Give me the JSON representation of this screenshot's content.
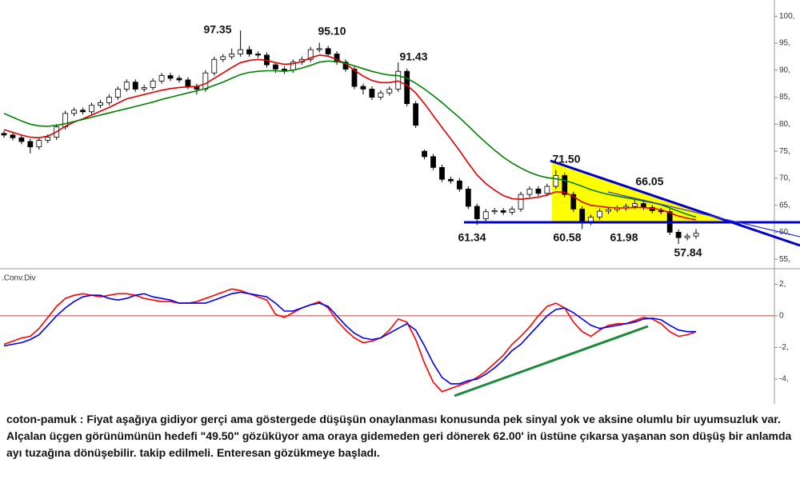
{
  "chart_data": [
    {
      "type": "candlestick",
      "open": [
        78.3,
        78.0,
        77.5,
        76.8,
        75.8,
        77.0,
        77.6,
        79.5,
        82.0,
        82.6,
        82.3,
        83.5,
        84.0,
        85.0,
        86.5,
        87.8,
        86.5,
        86.8,
        88.0,
        89.0,
        88.5,
        88.2,
        87.0,
        86.5,
        89.5,
        92.0,
        92.5,
        93.0,
        93.8,
        93.0,
        92.8,
        91.0,
        90.2,
        90.0,
        91.5,
        92.0,
        93.8,
        94.0,
        93.0,
        91.5,
        90.2,
        87.0,
        86.5,
        85.0,
        85.8,
        86.5,
        89.8,
        83.8,
        75.0,
        74.0,
        72.0,
        69.8,
        69.5,
        68.0,
        64.8,
        62.5,
        63.8,
        64.0,
        63.7,
        64.3,
        67.0,
        68.0,
        67.2,
        68.5,
        70.5,
        67.0,
        64.3,
        61.8,
        62.8,
        63.9,
        64.2,
        64.5,
        64.8,
        65.3,
        64.6,
        64.0,
        63.8,
        60.0,
        59.0,
        59.3
      ],
      "high": [
        78.8,
        78.5,
        78.0,
        77.3,
        77.5,
        78.1,
        80.0,
        82.5,
        83.1,
        83.1,
        84.0,
        84.5,
        85.5,
        87.0,
        88.3,
        88.3,
        87.3,
        88.5,
        89.5,
        89.5,
        89.0,
        88.7,
        87.5,
        90.0,
        92.5,
        93.0,
        94.0,
        97.35,
        94.5,
        93.5,
        93.3,
        91.5,
        90.7,
        92.0,
        92.5,
        94.3,
        95.1,
        94.5,
        93.5,
        92.0,
        90.7,
        87.5,
        87.0,
        86.3,
        87.0,
        91.43,
        90.3,
        84.3,
        75.3,
        74.5,
        72.5,
        70.3,
        70.0,
        68.5,
        65.3,
        64.3,
        64.5,
        64.5,
        64.8,
        67.5,
        68.5,
        68.5,
        69.0,
        71.5,
        71.0,
        67.5,
        64.8,
        63.3,
        64.4,
        64.7,
        65.0,
        65.3,
        66.05,
        65.8,
        65.1,
        64.5,
        64.3,
        60.5,
        59.8,
        60.6
      ],
      "low": [
        77.5,
        77.0,
        76.3,
        74.6,
        75.3,
        76.5,
        77.1,
        79.0,
        81.5,
        81.8,
        81.8,
        83.0,
        83.5,
        84.5,
        86.0,
        86.0,
        86.0,
        86.3,
        87.5,
        88.0,
        87.7,
        86.5,
        85.5,
        86.0,
        89.0,
        91.5,
        92.0,
        92.5,
        92.5,
        92.3,
        90.5,
        89.5,
        89.3,
        89.5,
        91.0,
        91.5,
        93.3,
        92.5,
        91.0,
        89.7,
        86.5,
        85.5,
        84.5,
        84.5,
        85.3,
        86.0,
        83.3,
        79.3,
        73.5,
        71.5,
        69.3,
        69.0,
        67.5,
        64.3,
        61.34,
        62.0,
        63.3,
        63.2,
        63.2,
        63.8,
        66.5,
        66.7,
        66.7,
        68.0,
        66.5,
        63.8,
        60.58,
        61.3,
        62.3,
        63.4,
        63.7,
        64.0,
        64.3,
        64.1,
        63.5,
        63.3,
        59.5,
        57.84,
        58.5,
        58.8
      ],
      "close": [
        78.0,
        77.5,
        76.8,
        75.8,
        77.0,
        77.6,
        79.5,
        82.0,
        82.6,
        82.3,
        83.5,
        84.0,
        85.0,
        86.5,
        87.8,
        86.5,
        86.8,
        88.0,
        89.0,
        88.5,
        88.2,
        87.0,
        86.5,
        89.5,
        92.0,
        92.5,
        93.0,
        93.8,
        93.0,
        92.8,
        91.0,
        90.2,
        90.0,
        91.5,
        92.0,
        93.8,
        94.0,
        93.0,
        91.5,
        90.2,
        87.0,
        86.5,
        85.0,
        85.8,
        86.5,
        89.8,
        83.8,
        79.8,
        74.0,
        72.0,
        69.8,
        69.5,
        68.0,
        64.8,
        62.5,
        63.8,
        64.0,
        63.7,
        64.3,
        67.0,
        68.0,
        67.2,
        68.5,
        70.5,
        67.0,
        64.3,
        61.8,
        62.8,
        63.9,
        64.2,
        64.5,
        64.8,
        65.3,
        64.6,
        64.0,
        63.8,
        60.0,
        59.0,
        59.3,
        59.8
      ],
      "series": [
        {
          "color": "#e00000",
          "values": [
            79.0,
            78.5,
            78.0,
            77.6,
            77.5,
            77.8,
            78.6,
            79.6,
            80.4,
            81.0,
            81.7,
            82.4,
            83.1,
            83.9,
            84.7,
            85.1,
            85.5,
            85.9,
            86.3,
            86.6,
            86.8,
            86.9,
            87.0,
            87.5,
            88.5,
            89.5,
            90.5,
            91.4,
            91.8,
            92.0,
            91.8,
            91.4,
            91.1,
            91.2,
            91.6,
            92.3,
            92.8,
            92.6,
            92.0,
            91.2,
            90.0,
            88.9,
            88.1,
            87.7,
            87.7,
            88.0,
            87.2,
            85.8,
            83.8,
            81.6,
            79.4,
            77.3,
            75.1,
            72.8,
            70.6,
            69.0,
            67.8,
            66.8,
            66.2,
            66.1,
            66.3,
            66.5,
            66.9,
            67.5,
            67.4,
            66.6,
            65.6,
            65.0,
            64.8,
            64.6,
            64.5,
            64.5,
            64.6,
            64.6,
            64.4,
            64.2,
            63.6,
            63.0,
            62.6,
            62.3
          ]
        },
        {
          "color": "#008000",
          "values": [
            82.0,
            81.3,
            80.6,
            80.0,
            79.7,
            79.6,
            79.8,
            80.1,
            80.5,
            80.9,
            81.3,
            81.7,
            82.1,
            82.5,
            82.9,
            83.3,
            83.7,
            84.1,
            84.6,
            85.0,
            85.4,
            85.8,
            86.2,
            86.6,
            87.2,
            87.8,
            88.5,
            89.2,
            89.6,
            89.8,
            89.9,
            89.9,
            89.8,
            90.0,
            90.4,
            90.9,
            91.5,
            91.7,
            91.6,
            91.3,
            90.8,
            90.3,
            89.8,
            89.4,
            89.1,
            89.0,
            88.5,
            87.6,
            86.5,
            85.3,
            84.0,
            82.6,
            81.2,
            79.7,
            78.1,
            76.6,
            75.2,
            73.9,
            72.8,
            71.9,
            71.1,
            70.5,
            70.1,
            69.9,
            69.6,
            69.1,
            68.5,
            67.9,
            67.4,
            67.0,
            66.7,
            66.4,
            66.1,
            65.8,
            65.5,
            65.1,
            64.5,
            63.9,
            63.3,
            62.8
          ]
        }
      ],
      "annotations": [
        "97.35",
        "95.10",
        "91.43",
        "71.50",
        "66.05",
        "61.34",
        "60.58",
        "61.98",
        "57.84"
      ],
      "ylim": [
        53.4,
        103
      ],
      "yticks": [
        {
          "value": 100,
          "label": "100,"
        },
        {
          "value": 95,
          "label": "95,"
        },
        {
          "value": 90,
          "label": "90,"
        },
        {
          "value": 85,
          "label": "85,"
        },
        {
          "value": 80,
          "label": "80,"
        },
        {
          "value": 75,
          "label": "75,"
        },
        {
          "value": 70,
          "label": "70,"
        },
        {
          "value": 65,
          "label": "65,"
        },
        {
          "value": 60,
          "label": "60,"
        },
        {
          "value": 55,
          "label": "55,"
        }
      ],
      "grid": false
    },
    {
      "type": "line",
      "label": ".Conv.Div",
      "series": [
        {
          "color": "#ff0000",
          "values": [
            -1.8,
            -1.6,
            -1.4,
            -1.3,
            -0.8,
            -0.1,
            0.6,
            1.1,
            1.3,
            1.4,
            1.3,
            1.2,
            1.3,
            1.4,
            1.4,
            1.3,
            1.1,
            1.0,
            0.9,
            0.9,
            0.8,
            0.8,
            0.9,
            1.1,
            1.3,
            1.5,
            1.7,
            1.6,
            1.4,
            1.2,
            1.0,
            0.1,
            -0.1,
            0.2,
            0.5,
            0.7,
            0.9,
            0.5,
            -0.3,
            -0.9,
            -1.4,
            -1.7,
            -1.6,
            -1.4,
            -0.9,
            -0.2,
            -0.4,
            -1.5,
            -3.0,
            -4.2,
            -4.8,
            -4.6,
            -4.4,
            -4.2,
            -3.9,
            -3.5,
            -3.0,
            -2.5,
            -1.8,
            -1.3,
            -0.7,
            0.0,
            0.6,
            0.8,
            0.5,
            -0.4,
            -1.0,
            -1.3,
            -0.9,
            -0.6,
            -0.5,
            -0.5,
            -0.3,
            -0.1,
            -0.2,
            -0.5,
            -1.0,
            -1.3,
            -1.2,
            -1.0
          ]
        },
        {
          "color": "#0000ee",
          "values": [
            -1.9,
            -1.8,
            -1.7,
            -1.5,
            -1.2,
            -0.6,
            0.0,
            0.5,
            0.9,
            1.2,
            1.3,
            1.3,
            1.1,
            1.0,
            1.1,
            1.3,
            1.4,
            1.2,
            1.1,
            1.0,
            0.8,
            0.8,
            0.8,
            0.8,
            1.0,
            1.2,
            1.4,
            1.5,
            1.4,
            1.3,
            1.2,
            0.8,
            0.3,
            0.3,
            0.5,
            0.7,
            0.8,
            0.6,
            0.0,
            -0.6,
            -1.1,
            -1.4,
            -1.5,
            -1.4,
            -1.1,
            -0.8,
            -0.5,
            -0.9,
            -1.9,
            -3.0,
            -3.9,
            -4.3,
            -4.3,
            -4.1,
            -4.0,
            -3.7,
            -3.3,
            -2.8,
            -2.2,
            -1.8,
            -1.2,
            -0.6,
            0.0,
            0.4,
            0.5,
            0.2,
            -0.2,
            -0.6,
            -0.8,
            -0.7,
            -0.6,
            -0.5,
            -0.4,
            -0.2,
            -0.15,
            -0.25,
            -0.6,
            -0.9,
            -1.0,
            -1.0
          ]
        }
      ],
      "ylim": [
        -5.57,
        2.78
      ],
      "yticks": [
        {
          "value": 2,
          "label": "2,"
        },
        0,
        {
          "value": -2,
          "label": "-2,"
        },
        {
          "value": -4,
          "label": "-4,"
        }
      ],
      "grid": false
    }
  ],
  "caption": "coton-pamuk : Fiyat aşağıya gidiyor gerçi ama göstergede düşüşün onaylanması konusunda pek sinyal yok ve aksine olumlu bir uyumsuzluk var. Alçalan üçgen görünümünün hedefi \"49.50\" gözüküyor ama oraya gidemeden geri dönerek 62.00' in üstüne çıkarsa yaşanan son düşüş bir anlamda ayı tuzağına dönüşebilir. takip edilmeli. Enteresan gözükmeye başladı."
}
